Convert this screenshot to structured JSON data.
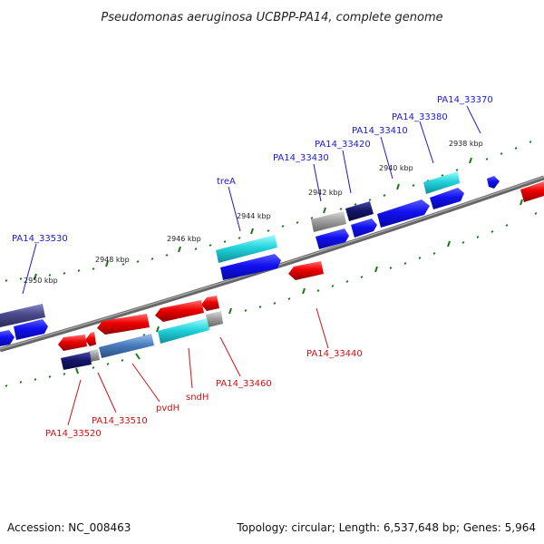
{
  "title": "Pseudomonas aeruginosa UCBPP-PA14, complete genome",
  "footer": {
    "accession": "Accession: NC_008463",
    "topology": "Topology: circular; Length: 6,537,648 bp; Genes: 5,964"
  },
  "ruler_labels": [
    "2938 kbp",
    "2940 kbp",
    "2942 kbp",
    "2944 kbp",
    "2946 kbp",
    "2948 kbp",
    "2950 kbp"
  ],
  "gene_labels": {
    "forward": [
      "PA14_33370",
      "PA14_33380",
      "PA14_33410",
      "PA14_33420",
      "PA14_33430",
      "treA",
      "PA14_33530"
    ],
    "reverse": [
      "PA14_33440",
      "PA14_33460",
      "sndH",
      "pvdH",
      "PA14_33510",
      "PA14_33520"
    ]
  },
  "colors": {
    "forward_label": "#1a1ad0",
    "reverse_label": "#d01010",
    "backbone": "#777777",
    "tick": "#1a7a1a"
  }
}
